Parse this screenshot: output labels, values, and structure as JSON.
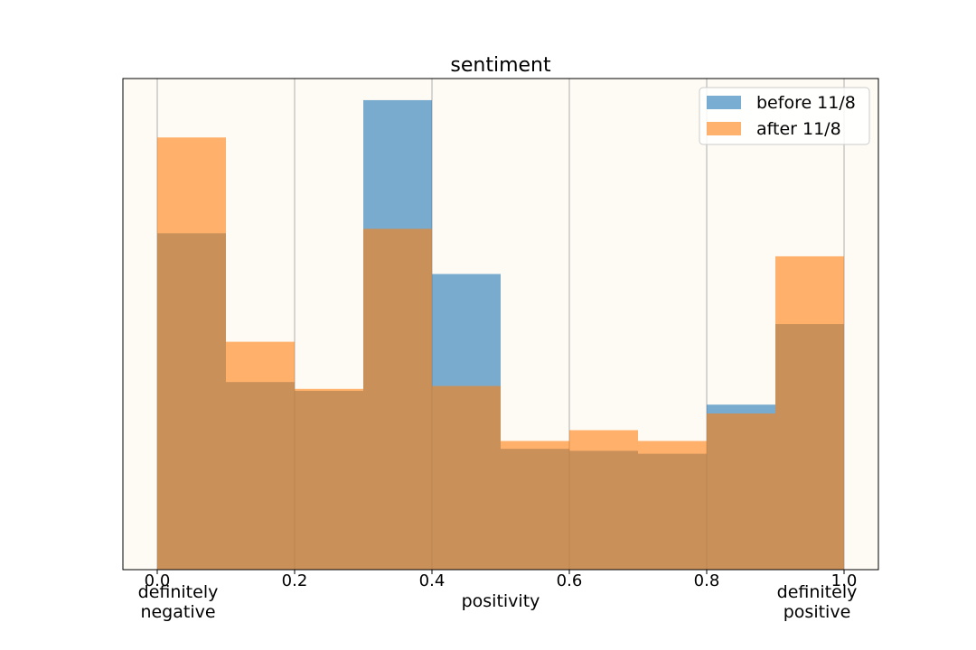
{
  "chart_data": {
    "type": "bar",
    "title": "sentiment",
    "xlabel": "positivity",
    "ylabel": "",
    "xlim": [
      -0.05,
      1.05
    ],
    "ylim": [
      0,
      1.0
    ],
    "grid": "vertical",
    "legend_position": "top-right",
    "bin_edges": [
      0.0,
      0.1,
      0.2,
      0.3,
      0.4,
      0.5,
      0.6,
      0.7,
      0.8,
      0.9,
      1.0
    ],
    "x_ticks": [
      "0.0",
      "0.2",
      "0.4",
      "0.6",
      "0.8",
      "1.0"
    ],
    "x_tick_values": [
      0.0,
      0.2,
      0.4,
      0.6,
      0.8,
      1.0
    ],
    "annotations": [
      {
        "lines": [
          "definitely",
          "negative"
        ],
        "x": 0.05
      },
      {
        "lines": [
          "definitely",
          "positive"
        ],
        "x": 0.95
      }
    ],
    "series": [
      {
        "name": "before 11/8",
        "color": "#1f77b4",
        "values": [
          0.685,
          0.382,
          0.364,
          0.956,
          0.602,
          0.246,
          0.242,
          0.236,
          0.336,
          0.5
        ]
      },
      {
        "name": "after 11/8",
        "color": "#ff7f0e",
        "values": [
          0.88,
          0.464,
          0.368,
          0.694,
          0.374,
          0.262,
          0.284,
          0.262,
          0.318,
          0.638
        ]
      }
    ],
    "background": "#fefaf4",
    "bar_alpha": 0.6
  }
}
